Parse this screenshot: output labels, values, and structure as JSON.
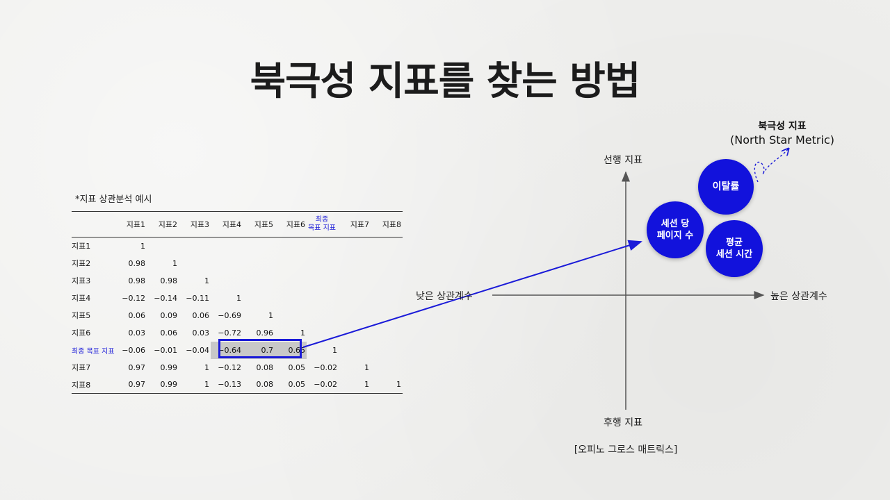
{
  "title": "북극성 지표를 찾는 방법",
  "table": {
    "caption": "*지표 상관분석 예시",
    "columns": [
      "지표1",
      "지표2",
      "지표3",
      "지표4",
      "지표5",
      "지표6",
      "최종 목표 지표",
      "지표7",
      "지표8"
    ],
    "final_column_line1": "최종",
    "final_column_line2": "목표 지표",
    "rows": [
      {
        "label": "지표1",
        "values": [
          "1",
          "",
          "",
          "",
          "",
          "",
          "",
          "",
          ""
        ]
      },
      {
        "label": "지표2",
        "values": [
          "0.98",
          "1",
          "",
          "",
          "",
          "",
          "",
          "",
          ""
        ]
      },
      {
        "label": "지표3",
        "values": [
          "0.98",
          "0.98",
          "1",
          "",
          "",
          "",
          "",
          "",
          ""
        ]
      },
      {
        "label": "지표4",
        "values": [
          "−0.12",
          "−0.14",
          "−0.11",
          "1",
          "",
          "",
          "",
          "",
          ""
        ]
      },
      {
        "label": "지표5",
        "values": [
          "0.06",
          "0.09",
          "0.06",
          "−0.69",
          "1",
          "",
          "",
          "",
          ""
        ]
      },
      {
        "label": "지표6",
        "values": [
          "0.03",
          "0.06",
          "0.03",
          "−0.72",
          "0.96",
          "1",
          "",
          "",
          ""
        ]
      },
      {
        "label": "최종 목표 지표",
        "values": [
          "−0.06",
          "−0.01",
          "−0.04",
          "−0.64",
          "0.7",
          "0.65",
          "1",
          "",
          ""
        ]
      },
      {
        "label": "지표7",
        "values": [
          "0.97",
          "0.99",
          "1",
          "−0.12",
          "0.08",
          "0.05",
          "−0.02",
          "1",
          ""
        ]
      },
      {
        "label": "지표8",
        "values": [
          "0.97",
          "0.99",
          "1",
          "−0.13",
          "0.08",
          "0.05",
          "−0.02",
          "1",
          "1"
        ]
      }
    ]
  },
  "matrix": {
    "y_top_label": "선행 지표",
    "y_bottom_label": "후행 지표",
    "x_left_label": "낮은 상관계수",
    "x_right_label": "높은 상관계수",
    "caption": "[오피노 그로스 매트릭스]",
    "circles": [
      {
        "line1": "세션 당",
        "line2": "페이지 수"
      },
      {
        "line1": "이탈률",
        "line2": ""
      },
      {
        "line1": "평균",
        "line2": "세션 시간"
      }
    ],
    "nsm_title": "북극성 지표",
    "nsm_subtitle": "(North Star Metric)",
    "circle_color": "#1212dc",
    "highlight_color": "#1a1ad8"
  }
}
